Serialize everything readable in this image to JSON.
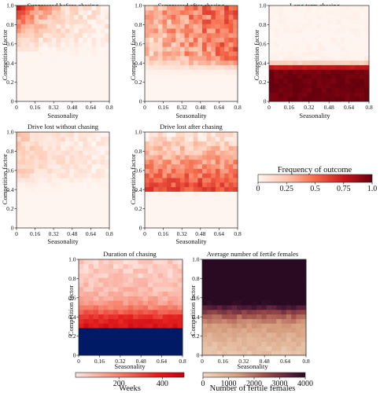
{
  "colors": {
    "heat_low": "#fff5f0",
    "heat_high": "#67000d",
    "duration_low": "#fee6e0",
    "duration_high": "#c40010",
    "duration_floor": "#001a66",
    "fertile_low": "#f2d8c2",
    "fertile_mid": "#a0504a",
    "fertile_high": "#2a0a22"
  },
  "chart_data": [
    {
      "type": "heatmap",
      "title": "Suppressed before chasing",
      "xlabel": "Seasonality",
      "ylabel": "Competition factor",
      "x_ticks": [
        "0",
        "0.16",
        "0.32",
        "0.48",
        "0.64",
        "0.8"
      ],
      "y_ticks": [
        "0",
        "0.2",
        "0.4",
        "0.6",
        "0.8",
        "1.0"
      ],
      "xlim": [
        0,
        0.8
      ],
      "ylim": [
        0,
        1.0
      ],
      "value_range": [
        0,
        1.0
      ],
      "pattern": "Highest frequency (~0.6) at low seasonality and high competition factor (>0.7), fading toward higher seasonality; near 0 below competition factor ~0.5"
    },
    {
      "type": "heatmap",
      "title": "Suppressed after chasing",
      "xlabel": "Seasonality",
      "ylabel": "Competition factor",
      "x_ticks": [
        "0",
        "0.16",
        "0.32",
        "0.48",
        "0.64",
        "0.8"
      ],
      "y_ticks": [
        "0",
        "0.2",
        "0.4",
        "0.6",
        "0.8",
        "1.0"
      ],
      "xlim": [
        0,
        0.8
      ],
      "ylim": [
        0,
        1.0
      ],
      "value_range": [
        0,
        1.0
      ],
      "pattern": "Moderate frequency (~0.3–0.5) spread across competition factor 0.4–1.0, strongest at high seasonality; near 0 below ~0.35"
    },
    {
      "type": "heatmap",
      "title": "Long term chasing",
      "xlabel": "Seasonality",
      "ylabel": "Competition factor",
      "x_ticks": [
        "0",
        "0.16",
        "0.32",
        "0.48",
        "0.64",
        "0.8"
      ],
      "y_ticks": [
        "0",
        "0.2",
        "0.4",
        "0.6",
        "0.8",
        "1.0"
      ],
      "xlim": [
        0,
        0.8
      ],
      "ylim": [
        0,
        1.0
      ],
      "value_range": [
        0,
        1.0
      ],
      "pattern": "Frequency ~1.0 for competition factor below ~0.35 at all seasonality values; near 0 above ~0.45"
    },
    {
      "type": "heatmap",
      "title": "Drive lost without chasing",
      "xlabel": "Seasonality",
      "ylabel": "Competition factor",
      "x_ticks": [
        "0",
        "0.16",
        "0.32",
        "0.48",
        "0.64",
        "0.8"
      ],
      "y_ticks": [
        "0",
        "0.2",
        "0.4",
        "0.6",
        "0.8",
        "1.0"
      ],
      "xlim": [
        0,
        0.8
      ],
      "ylim": [
        0,
        1.0
      ],
      "value_range": [
        0,
        1.0
      ],
      "pattern": "Low frequency (~0.1–0.25) for competition factor above ~0.5 and seasonality below ~0.5; near 0 elsewhere"
    },
    {
      "type": "heatmap",
      "title": "Drive lost after chasing",
      "xlabel": "Seasonality",
      "ylabel": "Competition factor",
      "x_ticks": [
        "0",
        "0.16",
        "0.32",
        "0.48",
        "0.64",
        "0.8"
      ],
      "y_ticks": [
        "0",
        "0.2",
        "0.4",
        "0.6",
        "0.8",
        "1.0"
      ],
      "xlim": [
        0,
        0.8
      ],
      "ylim": [
        0,
        1.0
      ],
      "value_range": [
        0,
        1.0
      ],
      "pattern": "Highest (~0.6) in a band at competition factor ~0.4–0.55, decreasing upward to ~0.1 at 1.0; near 0 below ~0.35"
    },
    {
      "type": "heatmap",
      "title": "Duration of chasing",
      "xlabel": "Seasonality",
      "ylabel": "Competition factor",
      "x_ticks": [
        "0",
        "0.16",
        "0.32",
        "0.48",
        "0.64",
        "0.8"
      ],
      "y_ticks": [
        "0",
        "0.2",
        "0.4",
        "0.6",
        "0.8",
        "1.0"
      ],
      "xlim": [
        0,
        0.8
      ],
      "ylim": [
        0,
        1.0
      ],
      "value_range": [
        0,
        500
      ],
      "pattern": "Short duration (~100–150 weeks) at high competition factor, rising to ~350–450 weeks near 0.35–0.45; maximum (~500) below ~0.3"
    },
    {
      "type": "heatmap",
      "title": "Average number of fertile females",
      "xlabel": "Seasonality",
      "ylabel": "Competition factor",
      "x_ticks": [
        "0",
        "0.16",
        "0.32",
        "0.48",
        "0.64",
        "0.8"
      ],
      "y_ticks": [
        "0",
        "0.2",
        "0.4",
        "0.6",
        "0.8",
        "1.0"
      ],
      "xlim": [
        0,
        0.8
      ],
      "ylim": [
        0,
        1.0
      ],
      "value_range": [
        0,
        4000
      ],
      "pattern": "Low counts (~500–1000) below competition factor ~0.35, transitioning to ~3500–4000 above ~0.6"
    }
  ],
  "colorbars": {
    "frequency": {
      "title": "Frequency of outcome",
      "ticks": [
        "0",
        "0.25",
        "0.5",
        "0.75",
        "1.0"
      ]
    },
    "duration": {
      "title": "Weeks",
      "ticks": [
        "200",
        "400"
      ]
    },
    "fertile": {
      "title": "Number of fertile females",
      "ticks": [
        "0",
        "1000",
        "2000",
        "3000",
        "4000"
      ]
    }
  }
}
